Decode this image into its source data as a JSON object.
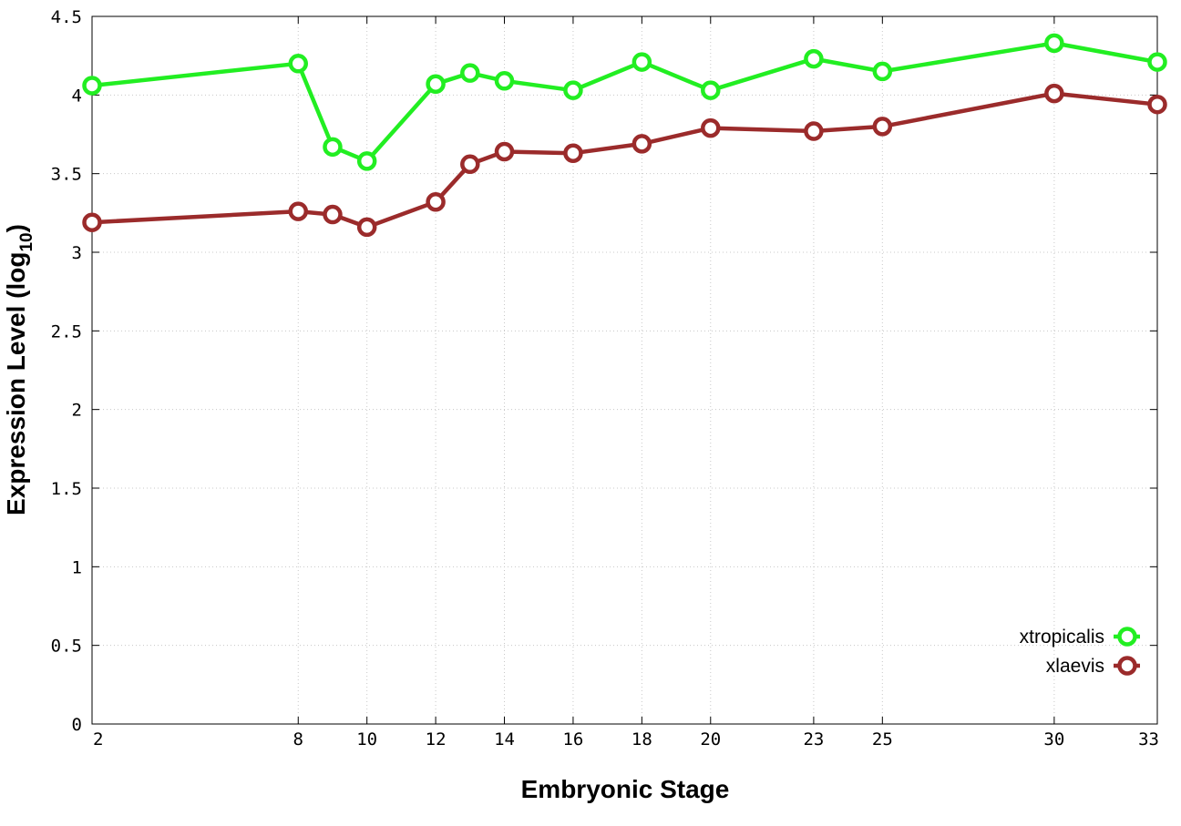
{
  "chart_data": {
    "type": "line",
    "title": "",
    "xlabel": "Embryonic Stage",
    "ylabel": "Expression Level (log",
    "ylabel_subscript": "10",
    "ylabel_close": ")",
    "x": [
      2,
      8,
      9,
      10,
      12,
      13,
      14,
      16,
      18,
      20,
      23,
      25,
      30,
      33
    ],
    "xticks": [
      "2",
      "8",
      "10",
      "12",
      "14",
      "16",
      "18",
      "20",
      "23",
      "25",
      "30",
      "33"
    ],
    "xtick_values": [
      2,
      8,
      10,
      12,
      14,
      16,
      18,
      20,
      23,
      25,
      30,
      33
    ],
    "xlim": [
      2,
      33
    ],
    "ylim": [
      0,
      4.5
    ],
    "yticks": [
      "0",
      "0.5",
      "1",
      "1.5",
      "2",
      "2.5",
      "3",
      "3.5",
      "4",
      "4.5"
    ],
    "ytick_values": [
      0,
      0.5,
      1,
      1.5,
      2,
      2.5,
      3,
      3.5,
      4,
      4.5
    ],
    "grid": true,
    "legend_position": "bottom-right",
    "series": [
      {
        "name": "xtropicalis",
        "color": "#22ee22",
        "values": [
          4.06,
          4.2,
          3.67,
          3.58,
          4.07,
          4.14,
          4.09,
          4.03,
          4.21,
          4.03,
          4.23,
          4.15,
          4.33,
          4.21
        ]
      },
      {
        "name": "xlaevis",
        "color": "#9b2b2b",
        "values": [
          3.19,
          3.26,
          3.24,
          3.16,
          3.32,
          3.56,
          3.64,
          3.63,
          3.69,
          3.79,
          3.77,
          3.8,
          4.01,
          3.94
        ]
      }
    ]
  }
}
